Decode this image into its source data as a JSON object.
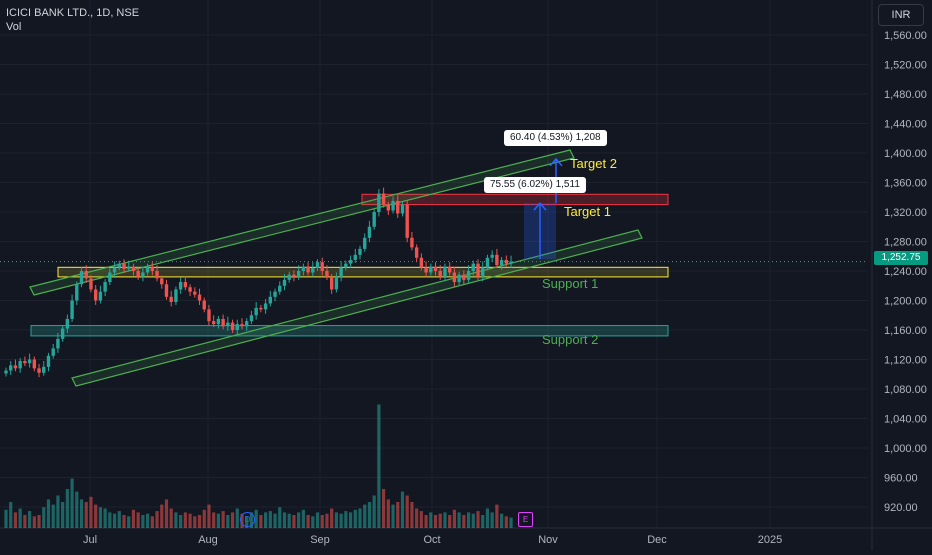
{
  "legend": {
    "symbol": "ICICI BANK LTD., 1D, NSE",
    "indicator": "Vol"
  },
  "currency": "INR",
  "last_price": "1,252.75",
  "price_axis_ticks": [
    "1,560.00",
    "1,520.00",
    "1,480.00",
    "1,440.00",
    "1,400.00",
    "1,360.00",
    "1,320.00",
    "1,280.00",
    "1,240.00",
    "1,200.00",
    "1,160.00",
    "1,120.00",
    "1,080.00",
    "1,040.00",
    "1,000.00",
    "960.00",
    "920.00"
  ],
  "time_axis_ticks": [
    "Jul",
    "Aug",
    "Sep",
    "Oct",
    "Nov",
    "Dec",
    "2025"
  ],
  "annotations": {
    "target1": "Target 1",
    "target2": "Target 2",
    "support1": "Support 1",
    "support2": "Support 2",
    "measure1": "75.55 (6.02%) 1,511",
    "measure2": "60.40 (4.53%) 1,208"
  },
  "event_badges": {
    "dividend": "D",
    "earnings": "E"
  },
  "colors": {
    "background": "#131722",
    "up": "#26a69a",
    "down": "#ef5350",
    "channel": "#4caf50",
    "support_zone": "#ffeb3b",
    "resistance_zone": "#f23645",
    "support2_zone": "#26a69a",
    "measure": "#2962ff",
    "target_text": "#ffeb3b",
    "support_text": "#4caf50"
  },
  "chart_data": {
    "type": "candlestick",
    "ylim": [
      900,
      1580
    ],
    "price_y_ticks": [
      1560,
      1520,
      1480,
      1440,
      1400,
      1360,
      1320,
      1280,
      1240,
      1200,
      1160,
      1120,
      1080,
      1040,
      1000,
      960,
      920
    ],
    "volume_axis": "relative (0-1)",
    "candles_approx": [
      {
        "t": 0,
        "c": 1105,
        "v": 0.14
      },
      {
        "t": 1,
        "c": 1112,
        "v": 0.2
      },
      {
        "t": 2,
        "c": 1108,
        "v": 0.12
      },
      {
        "t": 3,
        "c": 1118,
        "v": 0.15
      },
      {
        "t": 4,
        "c": 1115,
        "v": 0.1
      },
      {
        "t": 5,
        "c": 1120,
        "v": 0.13
      },
      {
        "t": 6,
        "c": 1108,
        "v": 0.09
      },
      {
        "t": 7,
        "c": 1102,
        "v": 0.1
      },
      {
        "t": 8,
        "c": 1110,
        "v": 0.16
      },
      {
        "t": 9,
        "c": 1125,
        "v": 0.22
      },
      {
        "t": 10,
        "c": 1135,
        "v": 0.18
      },
      {
        "t": 11,
        "c": 1148,
        "v": 0.25
      },
      {
        "t": 12,
        "c": 1162,
        "v": 0.2
      },
      {
        "t": 13,
        "c": 1175,
        "v": 0.3
      },
      {
        "t": 14,
        "c": 1200,
        "v": 0.38
      },
      {
        "t": 15,
        "c": 1222,
        "v": 0.28
      },
      {
        "t": 16,
        "c": 1240,
        "v": 0.22
      },
      {
        "t": 17,
        "c": 1230,
        "v": 0.2
      },
      {
        "t": 18,
        "c": 1215,
        "v": 0.24
      },
      {
        "t": 19,
        "c": 1200,
        "v": 0.18
      },
      {
        "t": 20,
        "c": 1212,
        "v": 0.16
      },
      {
        "t": 21,
        "c": 1225,
        "v": 0.15
      },
      {
        "t": 22,
        "c": 1238,
        "v": 0.12
      },
      {
        "t": 23,
        "c": 1245,
        "v": 0.11
      },
      {
        "t": 24,
        "c": 1250,
        "v": 0.13
      },
      {
        "t": 25,
        "c": 1243,
        "v": 0.1
      },
      {
        "t": 26,
        "c": 1246,
        "v": 0.09
      },
      {
        "t": 27,
        "c": 1240,
        "v": 0.14
      },
      {
        "t": 28,
        "c": 1232,
        "v": 0.12
      },
      {
        "t": 29,
        "c": 1238,
        "v": 0.1
      },
      {
        "t": 30,
        "c": 1246,
        "v": 0.11
      },
      {
        "t": 31,
        "c": 1240,
        "v": 0.09
      },
      {
        "t": 32,
        "c": 1230,
        "v": 0.13
      },
      {
        "t": 33,
        "c": 1222,
        "v": 0.18
      },
      {
        "t": 34,
        "c": 1205,
        "v": 0.22
      },
      {
        "t": 35,
        "c": 1198,
        "v": 0.15
      },
      {
        "t": 36,
        "c": 1215,
        "v": 0.12
      },
      {
        "t": 37,
        "c": 1225,
        "v": 0.1
      },
      {
        "t": 38,
        "c": 1218,
        "v": 0.12
      },
      {
        "t": 39,
        "c": 1212,
        "v": 0.11
      },
      {
        "t": 40,
        "c": 1208,
        "v": 0.09
      },
      {
        "t": 41,
        "c": 1200,
        "v": 0.1
      },
      {
        "t": 42,
        "c": 1188,
        "v": 0.14
      },
      {
        "t": 43,
        "c": 1172,
        "v": 0.18
      },
      {
        "t": 44,
        "c": 1168,
        "v": 0.12
      },
      {
        "t": 45,
        "c": 1175,
        "v": 0.11
      },
      {
        "t": 46,
        "c": 1165,
        "v": 0.13
      },
      {
        "t": 47,
        "c": 1170,
        "v": 0.1
      },
      {
        "t": 48,
        "c": 1160,
        "v": 0.12
      },
      {
        "t": 49,
        "c": 1168,
        "v": 0.15
      },
      {
        "t": 50,
        "c": 1165,
        "v": 0.11
      },
      {
        "t": 51,
        "c": 1172,
        "v": 0.09
      },
      {
        "t": 52,
        "c": 1180,
        "v": 0.12
      },
      {
        "t": 53,
        "c": 1190,
        "v": 0.14
      },
      {
        "t": 54,
        "c": 1188,
        "v": 0.1
      },
      {
        "t": 55,
        "c": 1196,
        "v": 0.12
      },
      {
        "t": 56,
        "c": 1205,
        "v": 0.13
      },
      {
        "t": 57,
        "c": 1212,
        "v": 0.11
      },
      {
        "t": 58,
        "c": 1220,
        "v": 0.16
      },
      {
        "t": 59,
        "c": 1228,
        "v": 0.12
      },
      {
        "t": 60,
        "c": 1235,
        "v": 0.11
      },
      {
        "t": 61,
        "c": 1232,
        "v": 0.1
      },
      {
        "t": 62,
        "c": 1240,
        "v": 0.12
      },
      {
        "t": 63,
        "c": 1246,
        "v": 0.14
      },
      {
        "t": 64,
        "c": 1238,
        "v": 0.1
      },
      {
        "t": 65,
        "c": 1244,
        "v": 0.09
      },
      {
        "t": 66,
        "c": 1252,
        "v": 0.12
      },
      {
        "t": 67,
        "c": 1240,
        "v": 0.1
      },
      {
        "t": 68,
        "c": 1232,
        "v": 0.11
      },
      {
        "t": 69,
        "c": 1215,
        "v": 0.15
      },
      {
        "t": 70,
        "c": 1232,
        "v": 0.12
      },
      {
        "t": 71,
        "c": 1245,
        "v": 0.11
      },
      {
        "t": 72,
        "c": 1250,
        "v": 0.13
      },
      {
        "t": 73,
        "c": 1255,
        "v": 0.12
      },
      {
        "t": 74,
        "c": 1262,
        "v": 0.14
      },
      {
        "t": 75,
        "c": 1270,
        "v": 0.15
      },
      {
        "t": 76,
        "c": 1285,
        "v": 0.18
      },
      {
        "t": 77,
        "c": 1300,
        "v": 0.2
      },
      {
        "t": 78,
        "c": 1320,
        "v": 0.25
      },
      {
        "t": 79,
        "c": 1345,
        "v": 0.95
      },
      {
        "t": 80,
        "c": 1330,
        "v": 0.3
      },
      {
        "t": 81,
        "c": 1322,
        "v": 0.22
      },
      {
        "t": 82,
        "c": 1335,
        "v": 0.18
      },
      {
        "t": 83,
        "c": 1318,
        "v": 0.2
      },
      {
        "t": 84,
        "c": 1330,
        "v": 0.28
      },
      {
        "t": 85,
        "c": 1285,
        "v": 0.25
      },
      {
        "t": 86,
        "c": 1272,
        "v": 0.2
      },
      {
        "t": 87,
        "c": 1258,
        "v": 0.15
      },
      {
        "t": 88,
        "c": 1245,
        "v": 0.13
      },
      {
        "t": 89,
        "c": 1238,
        "v": 0.1
      },
      {
        "t": 90,
        "c": 1246,
        "v": 0.12
      },
      {
        "t": 91,
        "c": 1240,
        "v": 0.1
      },
      {
        "t": 92,
        "c": 1232,
        "v": 0.11
      },
      {
        "t": 93,
        "c": 1246,
        "v": 0.12
      },
      {
        "t": 94,
        "c": 1238,
        "v": 0.1
      },
      {
        "t": 95,
        "c": 1225,
        "v": 0.14
      },
      {
        "t": 96,
        "c": 1235,
        "v": 0.12
      },
      {
        "t": 97,
        "c": 1228,
        "v": 0.1
      },
      {
        "t": 98,
        "c": 1240,
        "v": 0.12
      },
      {
        "t": 99,
        "c": 1250,
        "v": 0.11
      },
      {
        "t": 100,
        "c": 1232,
        "v": 0.13
      },
      {
        "t": 101,
        "c": 1245,
        "v": 0.1
      },
      {
        "t": 102,
        "c": 1258,
        "v": 0.15
      },
      {
        "t": 103,
        "c": 1262,
        "v": 0.12
      },
      {
        "t": 104,
        "c": 1248,
        "v": 0.18
      },
      {
        "t": 105,
        "c": 1255,
        "v": 0.11
      },
      {
        "t": 106,
        "c": 1250,
        "v": 0.09
      },
      {
        "t": 107,
        "c": 1252.75,
        "v": 0.08
      }
    ],
    "zones": [
      {
        "name": "Support 1",
        "from": 1232,
        "to": 1245
      },
      {
        "name": "Support 2",
        "from": 1152,
        "to": 1166
      },
      {
        "name": "Target zone",
        "from": 1330,
        "to": 1344
      }
    ]
  }
}
